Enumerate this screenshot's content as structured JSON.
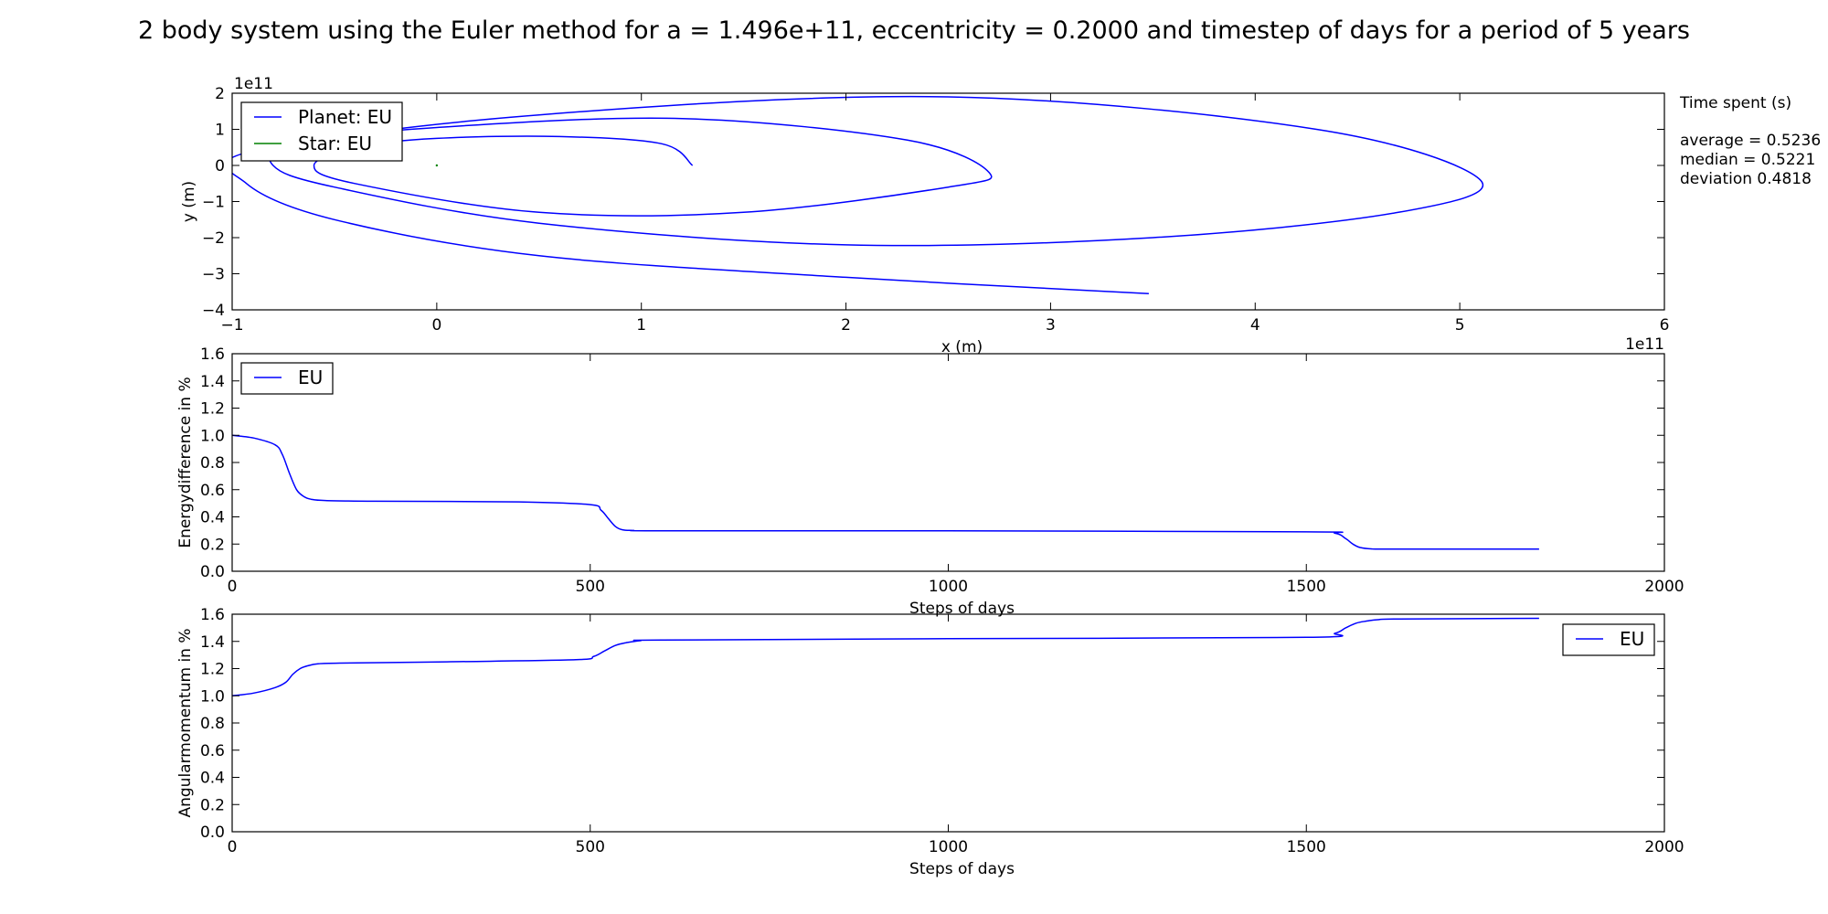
{
  "title": "2 body system using the Euler method for a = 1.496e+11, eccentricity = 0.2000 and timestep of days for a period of 5 years",
  "stats": {
    "heading": "Time spent (s)",
    "lines": [
      "average = 0.5236",
      "median = 0.5221",
      "deviation 0.4818"
    ]
  },
  "colors": {
    "eu_line": "#0000ff",
    "star_line": "#008000",
    "axes": "#000000"
  },
  "chart_data": [
    {
      "type": "line",
      "xlabel": "x (m)",
      "ylabel": "y (m)",
      "xlim": [
        -100000000000.0,
        600000000000.0
      ],
      "ylim": [
        -400000000000.0,
        200000000000.0
      ],
      "x_offset_label": "1e11",
      "y_offset_label": "1e11",
      "xticks": [
        -1,
        0,
        1,
        2,
        3,
        4,
        5,
        6
      ],
      "xtick_labels": [
        "−1",
        "0",
        "1",
        "2",
        "3",
        "4",
        "5",
        "6"
      ],
      "yticks": [
        2,
        1,
        0,
        -1,
        -2,
        -3,
        -4
      ],
      "ytick_labels": [
        "2",
        "1",
        "0",
        "−1",
        "−2",
        "−3",
        "−4"
      ],
      "legend_position": "upper-left",
      "series": [
        {
          "name": "Planet: EU",
          "x": [
            125000000000.0,
            110000000000.0,
            60000000000.0,
            0.0,
            -40000000000.0,
            -60000000000.0,
            -40000000000.0,
            50000000000.0,
            150000000000.0,
            250000000000.0,
            270000000000.0,
            230000000000.0,
            120000000000.0,
            0.0,
            -70000000000.0,
            -80000000000.0,
            -50000000000.0,
            50000000000.0,
            200000000000.0,
            350000000000.0,
            470000000000.0,
            510000000000.0,
            430000000000.0,
            250000000000.0,
            50000000000.0,
            -90000000000.0,
            -93000000000.0,
            -50000000000.0,
            50000000000.0,
            200000000000.0,
            348000000000.0
          ],
          "y": [
            0.0,
            60000000000.0,
            80000000000.0,
            75000000000.0,
            50000000000.0,
            0.0,
            -50000000000.0,
            -130000000000.0,
            -130000000000.0,
            -60000000000.0,
            -20000000000.0,
            70000000000.0,
            130000000000.0,
            105000000000.0,
            60000000000.0,
            0.0,
            -60000000000.0,
            -160000000000.0,
            -220000000000.0,
            -200000000000.0,
            -130000000000.0,
            -40000000000.0,
            100000000000.0,
            190000000000.0,
            140000000000.0,
            40000000000.0,
            -50000000000.0,
            -150000000000.0,
            -250000000000.0,
            -310000000000.0,
            -355000000000.0
          ],
          "color": "#0000ff"
        },
        {
          "name": "Star: EU",
          "x": [
            0.0
          ],
          "y": [
            0.0
          ],
          "color": "#008000"
        }
      ]
    },
    {
      "type": "line",
      "xlabel": "Steps of days",
      "ylabel": "Energydifference in %",
      "xlim": [
        0,
        2000
      ],
      "ylim": [
        0.0,
        1.6
      ],
      "xticks": [
        0,
        500,
        1000,
        1500,
        2000
      ],
      "xtick_labels": [
        "0",
        "500",
        "1000",
        "1500",
        "2000"
      ],
      "yticks": [
        0.0,
        0.2,
        0.4,
        0.6,
        0.8,
        1.0,
        1.2,
        1.4,
        1.6
      ],
      "ytick_labels": [
        "0.0",
        "0.2",
        "0.4",
        "0.6",
        "0.8",
        "1.0",
        "1.2",
        "1.4",
        "1.6"
      ],
      "legend_position": "upper-left",
      "series": [
        {
          "name": "EU",
          "x": [
            0,
            30,
            60,
            70,
            80,
            90,
            100,
            110,
            130,
            200,
            400,
            500,
            515,
            525,
            535,
            545,
            560,
            600,
            1000,
            1500,
            1540,
            1555,
            1565,
            1575,
            1590,
            1620,
            1825
          ],
          "y": [
            1.0,
            0.98,
            0.93,
            0.86,
            0.72,
            0.6,
            0.55,
            0.53,
            0.52,
            0.515,
            0.51,
            0.49,
            0.45,
            0.39,
            0.33,
            0.305,
            0.3,
            0.298,
            0.297,
            0.29,
            0.28,
            0.24,
            0.2,
            0.175,
            0.165,
            0.163,
            0.163
          ],
          "color": "#0000ff"
        }
      ]
    },
    {
      "type": "line",
      "xlabel": "Steps of days",
      "ylabel": "Angularmomentum in  %",
      "xlim": [
        0,
        2000
      ],
      "ylim": [
        0.0,
        1.6
      ],
      "xticks": [
        0,
        500,
        1000,
        1500,
        2000
      ],
      "xtick_labels": [
        "0",
        "500",
        "1000",
        "1500",
        "2000"
      ],
      "yticks": [
        0.0,
        0.2,
        0.4,
        0.6,
        0.8,
        1.0,
        1.2,
        1.4,
        1.6
      ],
      "ytick_labels": [
        "0.0",
        "0.2",
        "0.4",
        "0.6",
        "0.8",
        "1.0",
        "1.2",
        "1.4",
        "1.6"
      ],
      "legend_position": "upper-right",
      "series": [
        {
          "name": "EU",
          "x": [
            0,
            30,
            60,
            75,
            85,
            95,
            105,
            120,
            150,
            300,
            480,
            505,
            520,
            535,
            550,
            570,
            600,
            1000,
            1500,
            1540,
            1555,
            1570,
            1585,
            1600,
            1630,
            1825
          ],
          "y": [
            1.0,
            1.02,
            1.06,
            1.1,
            1.16,
            1.2,
            1.22,
            1.235,
            1.24,
            1.25,
            1.265,
            1.29,
            1.33,
            1.37,
            1.39,
            1.405,
            1.41,
            1.42,
            1.43,
            1.46,
            1.5,
            1.535,
            1.55,
            1.56,
            1.565,
            1.57
          ],
          "color": "#0000ff"
        }
      ]
    }
  ]
}
